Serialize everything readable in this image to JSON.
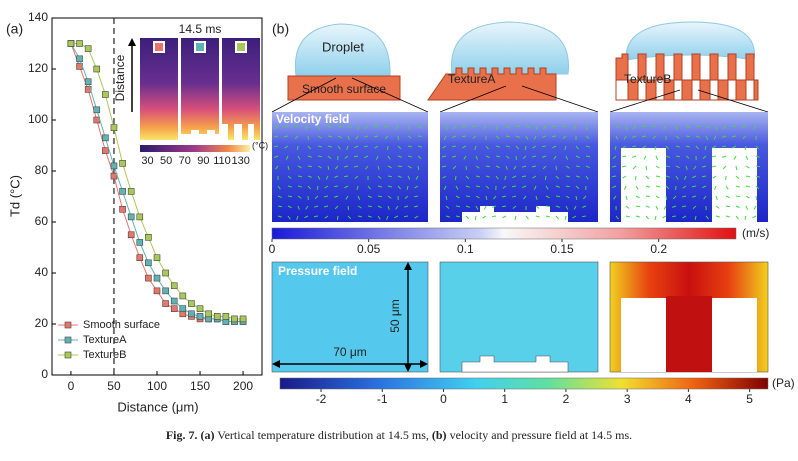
{
  "chart_data": {
    "type": "line",
    "panel_label": "(a)",
    "xlabel": "Distance (μm)",
    "ylabel": "Td (°C)",
    "x": [
      0,
      10,
      20,
      30,
      40,
      50,
      60,
      70,
      80,
      90,
      100,
      110,
      120,
      130,
      140,
      150,
      160,
      170,
      180,
      190,
      200
    ],
    "series": [
      {
        "name": "Smooth surface",
        "color": "#e8756a",
        "values": [
          130,
          121,
          112,
          100,
          88,
          78,
          65,
          55,
          46,
          38,
          33,
          28,
          26,
          24,
          23,
          22,
          22,
          22,
          21,
          21,
          21
        ]
      },
      {
        "name": "TextureA",
        "color": "#5fb3b3",
        "values": [
          130,
          124,
          115,
          104,
          93,
          82,
          72,
          62,
          52,
          44,
          38,
          33,
          29,
          26,
          24,
          23,
          22,
          22,
          21,
          21,
          21
        ]
      },
      {
        "name": "TextureB",
        "color": "#a8c957",
        "values": [
          130,
          130,
          128,
          120,
          110,
          97,
          83,
          72,
          62,
          54,
          46,
          40,
          35,
          31,
          28,
          26,
          24,
          23,
          23,
          22,
          22
        ]
      }
    ],
    "xlim": [
      -22,
      222
    ],
    "xticks": [
      0,
      50,
      100,
      150,
      200
    ],
    "ylim": [
      0,
      140
    ],
    "yticks": [
      0,
      20,
      40,
      60,
      80,
      100,
      120,
      140
    ],
    "vline": 50,
    "inset": {
      "title": "14.5 ms",
      "axis_label": "Distance",
      "unit": "(°C)",
      "ticks": [
        30,
        50,
        70,
        90,
        110,
        130
      ],
      "range": [
        22,
        140
      ]
    }
  },
  "panel_b": {
    "label": "(b)",
    "droplet": "Droplet",
    "surfaces": [
      "Smooth surface",
      "TextureA",
      "TextureB"
    ],
    "velocity_title": "Velocity field",
    "velocity_ticks": [
      0,
      0.05,
      0.1,
      0.15,
      0.2
    ],
    "velocity_range": [
      0,
      0.24
    ],
    "velocity_unit": "(m/s)",
    "pressure_title": "Pressure field",
    "height_label": "50 μm",
    "width_label": "70 μm",
    "pressure_ticks": [
      -2,
      -1,
      0,
      1,
      2,
      3,
      4,
      5
    ],
    "pressure_range": [
      -2.67,
      5.3
    ],
    "pressure_unit": "(Pa)"
  },
  "caption": {
    "fig": "Fig. 7.",
    "a": "(a)",
    "a_text": " Vertical temperature distribution at 14.5 ms, ",
    "b": "(b)",
    "b_text": " velocity and pressure field at 14.5 ms."
  }
}
